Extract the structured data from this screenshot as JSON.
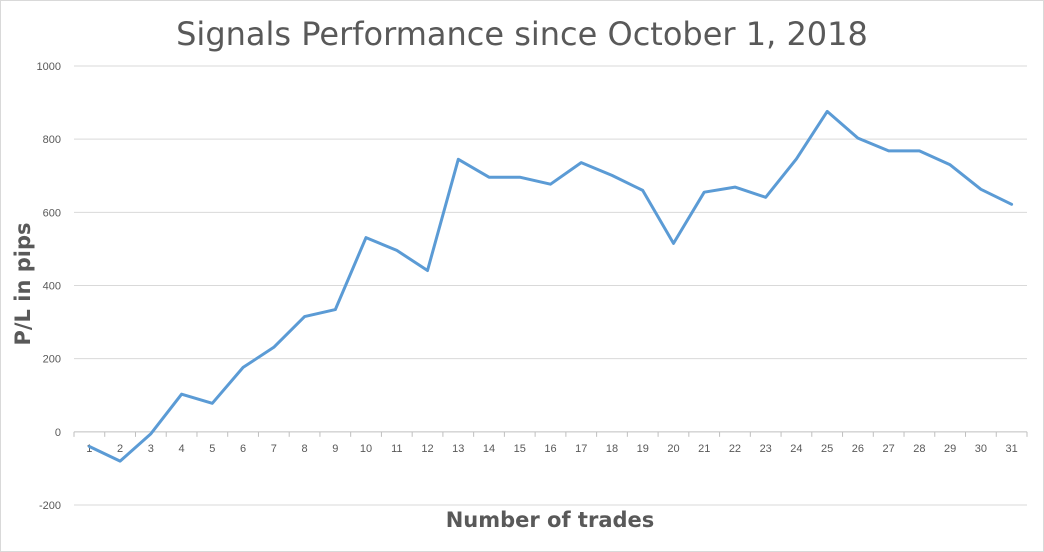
{
  "chart_data": {
    "type": "line",
    "title": "Signals Performance since October 1, 2018",
    "xlabel": "Number of trades",
    "ylabel": "P/L in pips",
    "categories": [
      "1",
      "2",
      "3",
      "4",
      "5",
      "6",
      "7",
      "8",
      "9",
      "10",
      "11",
      "12",
      "13",
      "14",
      "15",
      "16",
      "17",
      "18",
      "19",
      "20",
      "21",
      "22",
      "23",
      "24",
      "25",
      "26",
      "27",
      "28",
      "29",
      "30",
      "31"
    ],
    "series": [
      {
        "values": [
          -40,
          -80,
          -5,
          103,
          78,
          176,
          231,
          315,
          334,
          531,
          496,
          441,
          745,
          696,
          696,
          677,
          736,
          701,
          660,
          515,
          655,
          669,
          641,
          746,
          876,
          803,
          768,
          768,
          730,
          663,
          622
        ]
      }
    ],
    "ylim": [
      -200,
      1000
    ],
    "yticks": [
      -200,
      0,
      200,
      400,
      600,
      800,
      1000
    ],
    "grid": true,
    "legend": "none",
    "line_color": "#5b9bd5",
    "grid_color": "#d9d9d9",
    "axis_color": "#bfbfbf"
  }
}
